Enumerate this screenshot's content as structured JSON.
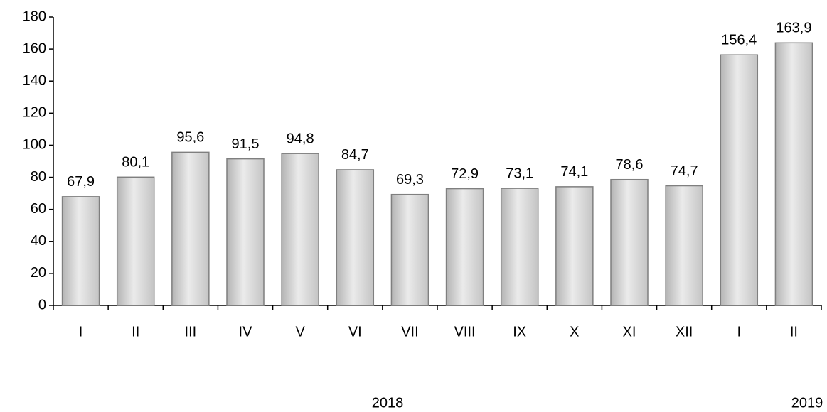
{
  "chart_data": {
    "type": "bar",
    "categories": [
      "I",
      "II",
      "III",
      "IV",
      "V",
      "VI",
      "VII",
      "VIII",
      "IX",
      "X",
      "XI",
      "XII",
      "I",
      "II"
    ],
    "values": [
      67.9,
      80.1,
      95.6,
      91.5,
      94.8,
      84.7,
      69.3,
      72.9,
      73.1,
      74.1,
      78.6,
      74.7,
      156.4,
      163.9
    ],
    "value_labels": [
      "67,9",
      "80,1",
      "95,6",
      "91,5",
      "94,8",
      "84,7",
      "69,3",
      "72,9",
      "73,1",
      "74,1",
      "78,6",
      "74,7",
      "156,4",
      "163,9"
    ],
    "group_labels": [
      "2018",
      "2019"
    ],
    "color": "#d0d0d0",
    "ylim": [
      0,
      180
    ],
    "yticks": [
      0,
      20,
      40,
      60,
      80,
      100,
      120,
      140,
      160,
      180
    ],
    "grid": false
  }
}
